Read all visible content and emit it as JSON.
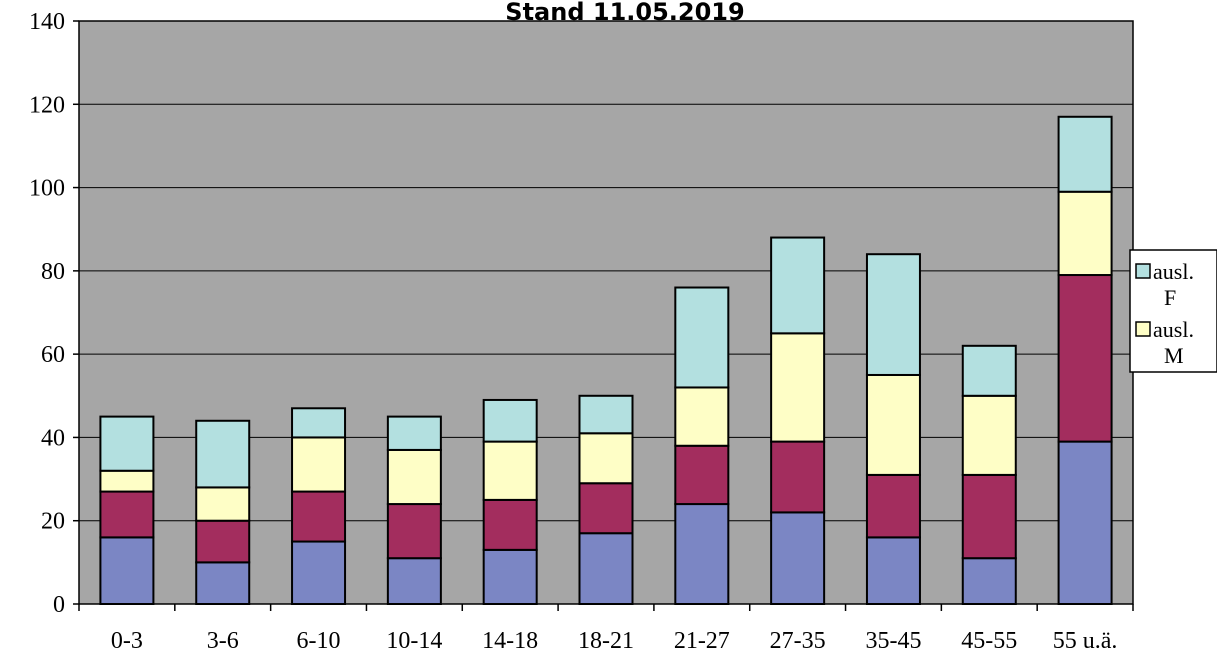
{
  "chart_data": {
    "type": "bar",
    "stacked": true,
    "title": "Stand 11.05.2019",
    "categories": [
      "0-3",
      "3-6",
      "6-10",
      "10-14",
      "14-18",
      "18-21",
      "21-27",
      "27-35",
      "35-45",
      "45-55",
      "55 u.ä."
    ],
    "series": [
      {
        "values": [
          16,
          10,
          15,
          11,
          13,
          17,
          24,
          22,
          16,
          11,
          39
        ],
        "color": "#7b86c4"
      },
      {
        "values": [
          11,
          10,
          12,
          13,
          12,
          12,
          14,
          17,
          15,
          20,
          40
        ],
        "color": "#a32d5e"
      },
      {
        "name": "ausl. M",
        "values": [
          5,
          8,
          13,
          13,
          14,
          12,
          14,
          26,
          24,
          19,
          20
        ],
        "color": "#fefec6"
      },
      {
        "name": "ausl. F",
        "values": [
          13,
          16,
          7,
          8,
          10,
          9,
          24,
          23,
          29,
          12,
          18
        ],
        "color": "#b3e0e0"
      }
    ],
    "ylim": [
      0,
      140
    ],
    "yticks": [
      0,
      20,
      40,
      60,
      80,
      100,
      120,
      140
    ],
    "grid": true,
    "plot_background": "#a6a6a6",
    "legend": {
      "position": "right",
      "entries": [
        {
          "line1": "ausl.",
          "line2": "F",
          "color": "#b3e0e0"
        },
        {
          "line1": "ausl.",
          "line2": "M",
          "color": "#fefec6"
        }
      ]
    }
  }
}
